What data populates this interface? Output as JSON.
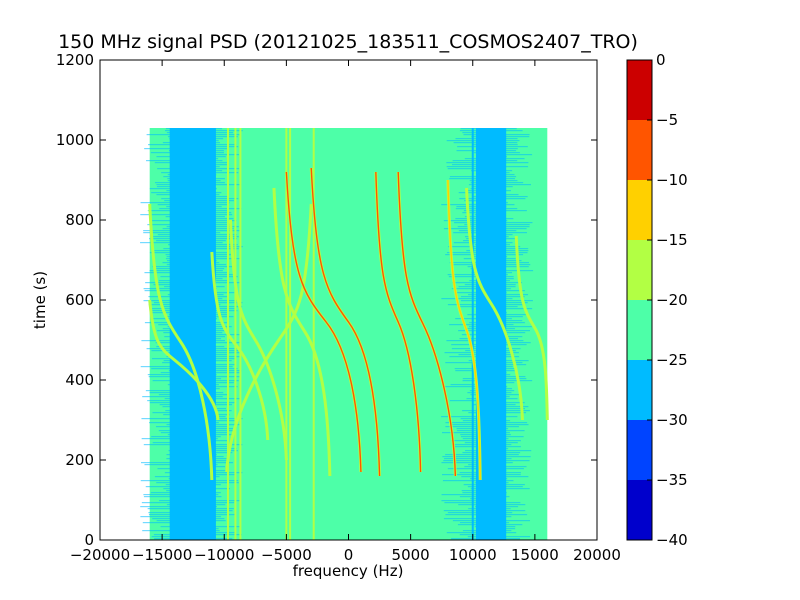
{
  "chart_data": {
    "type": "heatmap",
    "title": "150 MHz signal PSD (20121025_183511_COSMOS2407_TRO)",
    "xlabel": "frequency (Hz)",
    "ylabel": "time (s)",
    "xlim": [
      -20000,
      20000
    ],
    "ylim": [
      0,
      1200
    ],
    "xticks": [
      -20000,
      -15000,
      -10000,
      -5000,
      0,
      5000,
      10000,
      15000,
      20000
    ],
    "xtick_labels": [
      "−20000",
      "−15000",
      "−10000",
      "−5000",
      "0",
      "5000",
      "10000",
      "15000",
      "20000"
    ],
    "yticks": [
      0,
      200,
      400,
      600,
      800,
      1000,
      1200
    ],
    "ytick_labels": [
      "0",
      "200",
      "400",
      "600",
      "800",
      "1000",
      "1200"
    ],
    "data_extent": {
      "x": [
        -16000,
        16000
      ],
      "y": [
        0,
        1030
      ]
    },
    "colorbar": {
      "levels": [
        -40,
        -35,
        -30,
        -25,
        -20,
        -15,
        -10,
        -5,
        0
      ],
      "level_labels": [
        "−40",
        "−35",
        "−30",
        "−25",
        "−20",
        "−15",
        "−10",
        "−5",
        "0"
      ],
      "colors": [
        "#0000cc",
        "#0044ff",
        "#00bbff",
        "#4dffa8",
        "#b2ff44",
        "#ffd000",
        "#ff5500",
        "#cc0000"
      ]
    },
    "background_level_color": "#4dffa8",
    "low_noise_bands_hz": [
      [
        -16000,
        -9500
      ],
      [
        9000,
        13500
      ]
    ],
    "vertical_lines_hz": [
      {
        "x": -10800,
        "color": "#00bbff"
      },
      {
        "x": -9700,
        "color": "#b2ff44"
      },
      {
        "x": -9100,
        "color": "#b2ff44"
      },
      {
        "x": -8700,
        "color": "#b2ff44"
      },
      {
        "x": -5000,
        "color": "#b2ff44"
      },
      {
        "x": -4700,
        "color": "#b2ff44"
      },
      {
        "x": -2800,
        "color": "#b2ff44"
      },
      {
        "x": 10000,
        "color": "#00bbff"
      }
    ],
    "doppler_tracks": [
      {
        "t_start": 170,
        "t_end": 840,
        "x_top": -3000,
        "x_mid": -5500,
        "x_bottom": -9800,
        "color": "#b2ff44"
      },
      {
        "t_start": 160,
        "t_end": 880,
        "x_top": -6000,
        "x_mid": -3500,
        "x_bottom": -1500,
        "color": "#b2ff44"
      },
      {
        "t_start": 170,
        "t_end": 920,
        "x_top": -5000,
        "x_mid": -1800,
        "x_bottom": 1000,
        "color": "#ff5500"
      },
      {
        "t_start": 160,
        "t_end": 930,
        "x_top": -3000,
        "x_mid": 0,
        "x_bottom": 2500,
        "color": "#ff5500"
      },
      {
        "t_start": 170,
        "t_end": 920,
        "x_top": 2200,
        "x_mid": 4000,
        "x_bottom": 5800,
        "color": "#ff5500"
      },
      {
        "t_start": 160,
        "t_end": 920,
        "x_top": 4000,
        "x_mid": 6000,
        "x_bottom": 8600,
        "color": "#ff5500"
      },
      {
        "t_start": 150,
        "t_end": 900,
        "x_top": 8000,
        "x_mid": 9500,
        "x_bottom": 10600,
        "color": "#ffd000"
      },
      {
        "t_start": 300,
        "t_end": 880,
        "x_top": 9500,
        "x_mid": 11500,
        "x_bottom": 14000,
        "color": "#b2ff44"
      },
      {
        "t_start": 300,
        "t_end": 760,
        "x_top": 13500,
        "x_mid": 15000,
        "x_bottom": 16000,
        "color": "#b2ff44"
      },
      {
        "t_start": 150,
        "t_end": 840,
        "x_top": -16000,
        "x_mid": -13500,
        "x_bottom": -11000,
        "color": "#b2ff44"
      },
      {
        "t_start": 300,
        "t_end": 600,
        "x_top": -16000,
        "x_mid": -14000,
        "x_bottom": -10500,
        "color": "#b2ff44"
      },
      {
        "t_start": 200,
        "t_end": 800,
        "x_top": -9500,
        "x_mid": -7500,
        "x_bottom": -5000,
        "color": "#b2ff44"
      },
      {
        "t_start": 250,
        "t_end": 720,
        "x_top": -11000,
        "x_mid": -9000,
        "x_bottom": -6500,
        "color": "#b2ff44"
      }
    ]
  }
}
